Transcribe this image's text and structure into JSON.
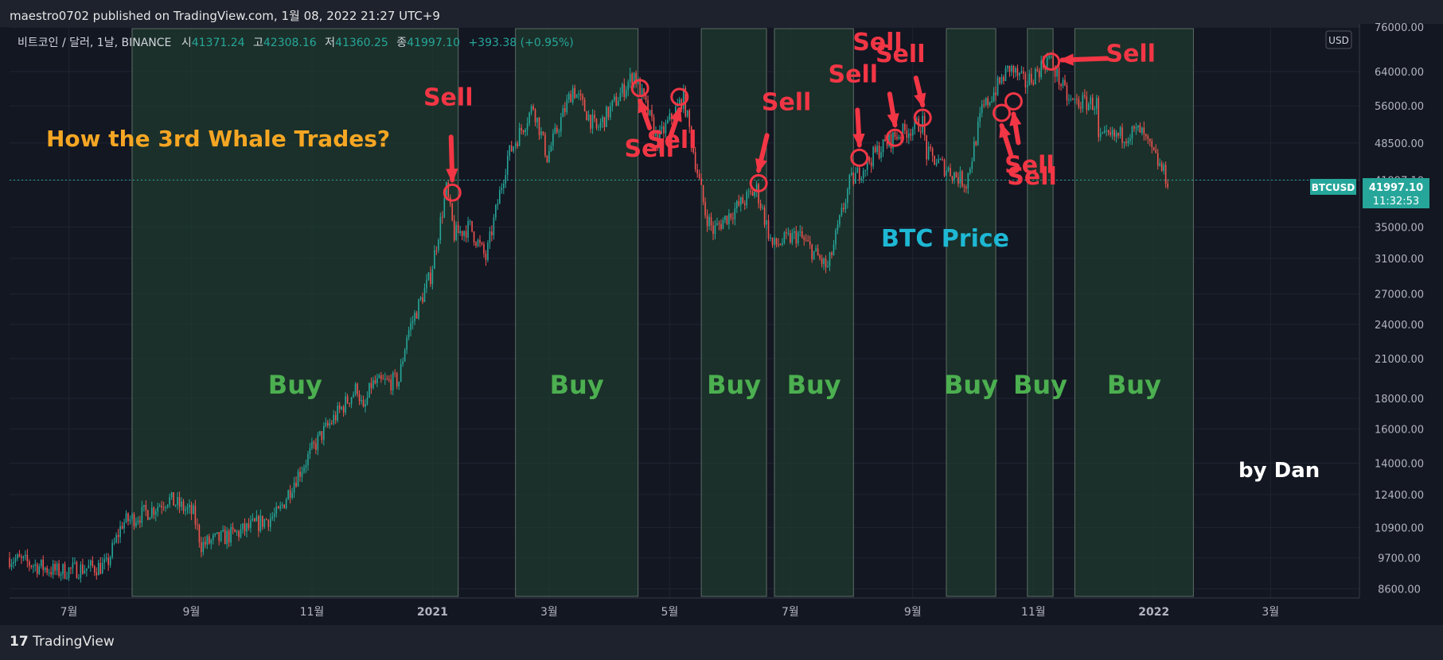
{
  "header": {
    "published": "maestro0702 published on TradingView.com, 1월 08, 2022 21:27 UTC+9"
  },
  "footer": {
    "brand": "TradingView",
    "brand_mark": "17"
  },
  "legend": {
    "symbol": "비트코인 / 달러, 1날, BINANCE",
    "o_label": "시",
    "o": "41371.24",
    "h_label": "고",
    "h": "42308.16",
    "l_label": "저",
    "l": "41360.25",
    "c_label": "종",
    "c": "41997.10",
    "change": "+393.38 (+0.95%)"
  },
  "annotations": {
    "title": "How the 3rd Whale Trades?",
    "btc_label": "BTC Price",
    "author": "by Dan",
    "buy_label": "Buy",
    "sell_label": "Sell"
  },
  "price_badge": {
    "symbol": "BTCUSD",
    "price": "41997.10",
    "countdown": "11:32:53"
  },
  "colors": {
    "background": "#131722",
    "up": "#26a69a",
    "down": "#ef5350",
    "buy_zone": "#1f3a2e",
    "buy_text": "#4caf50",
    "sell": "#f23645",
    "title": "#f5a623",
    "btc_label": "#1eb8d4",
    "axis_text": "#b2b5be"
  },
  "chart_data": {
    "type": "candlestick",
    "y_scale": "log",
    "ylim": [
      8300,
      77000
    ],
    "y_ticks": [
      "76000.00",
      "64000.00",
      "56000.00",
      "48500.00",
      "41997.10",
      "35000.00",
      "31000.00",
      "27000.00",
      "24000.00",
      "21000.00",
      "18000.00",
      "16000.00",
      "14000.00",
      "12400.00",
      "10900.00",
      "9700.00",
      "8600.00"
    ],
    "y_unit": "USD",
    "x_ticks": [
      "7월",
      "9월",
      "11월",
      "2021",
      "3월",
      "5월",
      "7월",
      "9월",
      "11월",
      "2022",
      "3월"
    ],
    "current_price": 41997.1,
    "price_path": [
      {
        "date": "2020-06-01",
        "price": 9700
      },
      {
        "date": "2020-06-25",
        "price": 9200
      },
      {
        "date": "2020-07-20",
        "price": 9400
      },
      {
        "date": "2020-07-28",
        "price": 11100
      },
      {
        "date": "2020-08-12",
        "price": 11700
      },
      {
        "date": "2020-08-20",
        "price": 12200
      },
      {
        "date": "2020-09-02",
        "price": 11500
      },
      {
        "date": "2020-09-06",
        "price": 10200
      },
      {
        "date": "2020-09-25",
        "price": 10700
      },
      {
        "date": "2020-10-15",
        "price": 11500
      },
      {
        "date": "2020-10-22",
        "price": 12900
      },
      {
        "date": "2020-11-05",
        "price": 15500
      },
      {
        "date": "2020-11-24",
        "price": 18800
      },
      {
        "date": "2020-11-27",
        "price": 17000
      },
      {
        "date": "2020-12-01",
        "price": 19000
      },
      {
        "date": "2020-12-15",
        "price": 19300
      },
      {
        "date": "2020-12-19",
        "price": 23000
      },
      {
        "date": "2020-12-31",
        "price": 29000
      },
      {
        "date": "2021-01-08",
        "price": 40500
      },
      {
        "date": "2021-01-12",
        "price": 34000
      },
      {
        "date": "2021-01-20",
        "price": 35000
      },
      {
        "date": "2021-01-28",
        "price": 31000
      },
      {
        "date": "2021-02-08",
        "price": 46000
      },
      {
        "date": "2021-02-21",
        "price": 56000
      },
      {
        "date": "2021-02-28",
        "price": 46000
      },
      {
        "date": "2021-03-13",
        "price": 60000
      },
      {
        "date": "2021-03-25",
        "price": 51000
      },
      {
        "date": "2021-04-13",
        "price": 63500
      },
      {
        "date": "2021-04-25",
        "price": 49000
      },
      {
        "date": "2021-05-08",
        "price": 58000
      },
      {
        "date": "2021-05-12",
        "price": 49000
      },
      {
        "date": "2021-05-19",
        "price": 37000
      },
      {
        "date": "2021-05-23",
        "price": 34500
      },
      {
        "date": "2021-06-01",
        "price": 37000
      },
      {
        "date": "2021-06-14",
        "price": 40500
      },
      {
        "date": "2021-06-22",
        "price": 32500
      },
      {
        "date": "2021-07-05",
        "price": 34000
      },
      {
        "date": "2021-07-20",
        "price": 29800
      },
      {
        "date": "2021-07-31",
        "price": 41500
      },
      {
        "date": "2021-08-14",
        "price": 47000
      },
      {
        "date": "2021-08-23",
        "price": 49800
      },
      {
        "date": "2021-09-06",
        "price": 52500
      },
      {
        "date": "2021-09-08",
        "price": 46500
      },
      {
        "date": "2021-09-28",
        "price": 41500
      },
      {
        "date": "2021-10-06",
        "price": 55000
      },
      {
        "date": "2021-10-20",
        "price": 65000
      },
      {
        "date": "2021-10-28",
        "price": 61000
      },
      {
        "date": "2021-11-09",
        "price": 67500
      },
      {
        "date": "2021-11-19",
        "price": 57000
      },
      {
        "date": "2021-12-03",
        "price": 56500
      },
      {
        "date": "2021-12-04",
        "price": 49000
      },
      {
        "date": "2021-12-25",
        "price": 50800
      },
      {
        "date": "2022-01-08",
        "price": 41997
      }
    ],
    "buy_zones": [
      {
        "start": "2020-08-02",
        "end": "2021-01-14"
      },
      {
        "start": "2021-02-12",
        "end": "2021-04-15"
      },
      {
        "start": "2021-05-17",
        "end": "2021-06-19"
      },
      {
        "start": "2021-06-23",
        "end": "2021-08-02"
      },
      {
        "start": "2021-09-18",
        "end": "2021-10-13"
      },
      {
        "start": "2021-10-29",
        "end": "2021-11-11"
      },
      {
        "start": "2021-11-22",
        "end": "2022-01-21"
      }
    ],
    "sell_points": [
      {
        "date": "2021-01-11",
        "price": 40000
      },
      {
        "date": "2021-04-16",
        "price": 60000
      },
      {
        "date": "2021-05-06",
        "price": 58000
      },
      {
        "date": "2021-06-15",
        "price": 41500
      },
      {
        "date": "2021-08-05",
        "price": 45800
      },
      {
        "date": "2021-08-23",
        "price": 49500
      },
      {
        "date": "2021-09-06",
        "price": 53500
      },
      {
        "date": "2021-10-16",
        "price": 54500
      },
      {
        "date": "2021-10-22",
        "price": 57000
      },
      {
        "date": "2021-11-10",
        "price": 66500
      }
    ]
  }
}
